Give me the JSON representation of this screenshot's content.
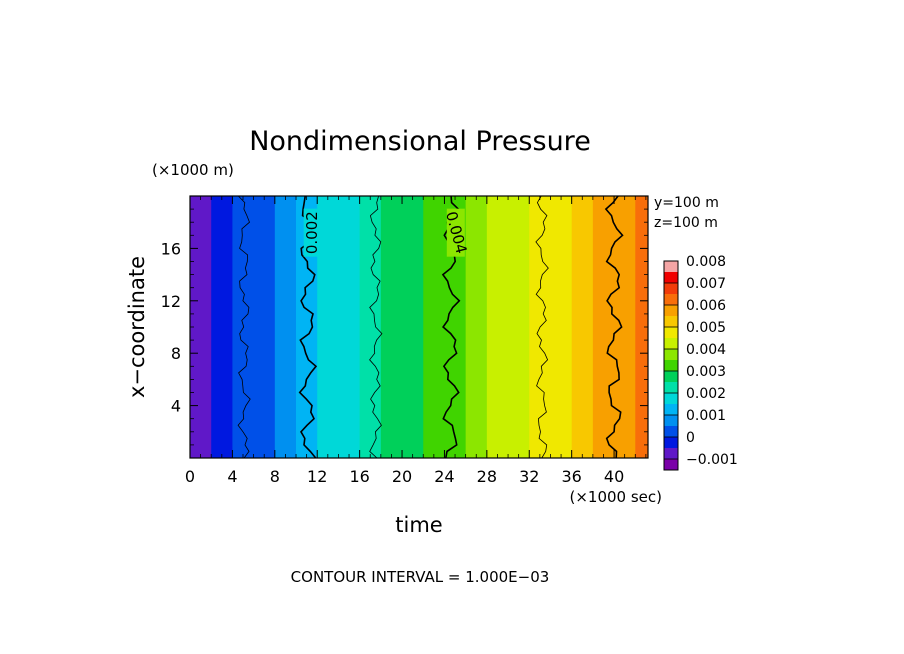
{
  "chart_data": {
    "type": "heatmap",
    "title": "Nondimensional Pressure",
    "xlabel": "time",
    "ylabel": "x−coordinate",
    "x_unit": "(×1000 sec)",
    "y_unit": "(×1000 m)",
    "xlim": [
      0,
      43.2
    ],
    "ylim": [
      0,
      20
    ],
    "x_ticks": [
      "0",
      "4",
      "8",
      "12",
      "16",
      "20",
      "24",
      "28",
      "32",
      "36",
      "40"
    ],
    "y_ticks": [
      "4",
      "8",
      "12",
      "16"
    ],
    "annotations": [
      "y=100 m",
      "z=100 m"
    ],
    "footer": "CONTOUR INTERVAL = 1.000E−03",
    "contour_labels": [
      "0.002",
      "0.004"
    ],
    "colorbar": {
      "labels": [
        "0.008",
        "0.007",
        "0.006",
        "0.005",
        "0.004",
        "0.003",
        "0.002",
        "0.001",
        "0",
        "−0.001"
      ],
      "levels": [
        0.008,
        0.0075,
        0.007,
        0.0065,
        0.006,
        0.0055,
        0.005,
        0.0045,
        0.004,
        0.0035,
        0.003,
        0.0025,
        0.002,
        0.0015,
        0.001,
        0.0005,
        0,
        -0.0005,
        -0.001
      ],
      "colors": [
        "#f4a5a5",
        "#f00000",
        "#f23c0a",
        "#f86e0a",
        "#f8a000",
        "#f8c800",
        "#f0e800",
        "#c8f000",
        "#8ce600",
        "#40d400",
        "#00d05a",
        "#00e0a8",
        "#00d8d8",
        "#00b4f4",
        "#0090f0",
        "#0050e8",
        "#0018e0",
        "#6018c8",
        "#7a00a8"
      ]
    },
    "gradient": {
      "time": [
        0,
        2,
        4,
        6,
        8,
        10,
        12,
        14,
        16,
        18,
        20,
        22,
        24,
        26,
        28,
        30,
        32,
        34,
        36,
        38,
        40,
        42,
        43.2
      ],
      "pressure": [
        -0.0001,
        0.0002,
        0.0005,
        0.0009,
        0.0013,
        0.0017,
        0.0021,
        0.0024,
        0.0027,
        0.003,
        0.0033,
        0.0036,
        0.0039,
        0.0042,
        0.0045,
        0.0048,
        0.0051,
        0.0054,
        0.0057,
        0.006,
        0.0064,
        0.0068,
        0.0071
      ]
    },
    "contours": [
      {
        "label": "",
        "weight": "thin",
        "t": 5.1
      },
      {
        "label": "0.002",
        "weight": "thick",
        "t": 11.1
      },
      {
        "label": "",
        "weight": "thin",
        "t": 17.5
      },
      {
        "label": "0.004",
        "weight": "thick",
        "t": 24.6
      },
      {
        "label": "",
        "weight": "thin",
        "t": 33.2
      },
      {
        "label": "",
        "weight": "thick",
        "t": 40.0
      }
    ]
  }
}
